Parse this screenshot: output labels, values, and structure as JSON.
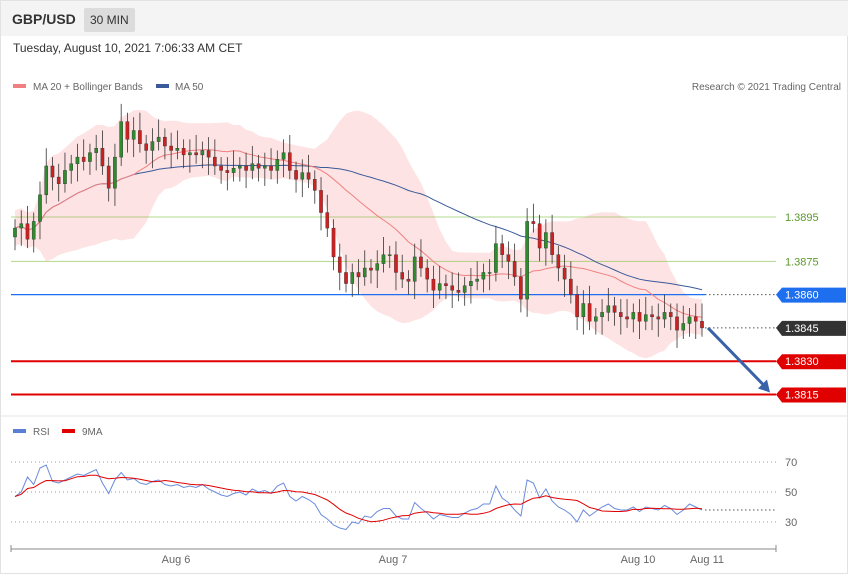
{
  "header": {
    "symbol": "GBP/USD",
    "timeframe": "30 MIN",
    "datetime": "Tuesday, August 10, 2021 7:06:33 AM CET"
  },
  "legend": {
    "ma20": "MA 20 + Bollinger Bands",
    "ma50": "MA 50",
    "copyright": "Research © 2021 Trading Central",
    "rsi": "RSI",
    "rsi_ma": "9MA"
  },
  "colors": {
    "ma20": "#f08080",
    "ma50": "#3a5a9a",
    "bands": "#fde0e0",
    "resistance": "#7fbf3f",
    "pivot": "#1e6ff0",
    "support": "#e00000",
    "current": "#333333",
    "up_candle": "#2e8b2e",
    "down_candle": "#cc2222",
    "arrow": "#3a62a8"
  },
  "chart_data": [
    {
      "type": "candlestick",
      "x_ticks": [
        "Aug 6",
        "Aug 7",
        "Aug 10",
        "Aug 11"
      ],
      "ylim": [
        1.3808,
        1.395
      ],
      "levels": [
        {
          "value": 1.3895,
          "label": "1.3895",
          "kind": "resistance"
        },
        {
          "value": 1.3875,
          "label": "1.3875",
          "kind": "resistance"
        },
        {
          "value": 1.386,
          "label": "1.3860",
          "kind": "pivot"
        },
        {
          "value": 1.3845,
          "label": "1.3845",
          "kind": "current"
        },
        {
          "value": 1.383,
          "label": "1.3830",
          "kind": "support"
        },
        {
          "value": 1.3815,
          "label": "1.3815",
          "kind": "support"
        }
      ],
      "closes": [
        1.389,
        1.3892,
        1.3885,
        1.3893,
        1.3905,
        1.3918,
        1.3913,
        1.391,
        1.3916,
        1.3919,
        1.3922,
        1.392,
        1.3924,
        1.3926,
        1.3918,
        1.3908,
        1.3922,
        1.3938,
        1.393,
        1.3934,
        1.3928,
        1.3925,
        1.3929,
        1.3931,
        1.3927,
        1.3925,
        1.3926,
        1.3923,
        1.3924,
        1.3923,
        1.3925,
        1.3922,
        1.3918,
        1.3916,
        1.3915,
        1.3917,
        1.3918,
        1.3916,
        1.3919,
        1.3917,
        1.3918,
        1.3916,
        1.3921,
        1.3924,
        1.3916,
        1.3912,
        1.3915,
        1.3912,
        1.3907,
        1.3897,
        1.389,
        1.3877,
        1.387,
        1.3865,
        1.387,
        1.3868,
        1.3872,
        1.3871,
        1.3874,
        1.3878,
        1.3878,
        1.387,
        1.3867,
        1.3866,
        1.3877,
        1.3872,
        1.3867,
        1.3862,
        1.3865,
        1.3864,
        1.3862,
        1.3861,
        1.3864,
        1.3866,
        1.3867,
        1.387,
        1.387,
        1.3883,
        1.3878,
        1.3875,
        1.3868,
        1.3858,
        1.3893,
        1.3892,
        1.3881,
        1.3888,
        1.3878,
        1.3872,
        1.3867,
        1.386,
        1.385,
        1.3856,
        1.3848,
        1.385,
        1.3852,
        1.3855,
        1.3852,
        1.385,
        1.3849,
        1.3852,
        1.3848,
        1.3851,
        1.385,
        1.3849,
        1.3852,
        1.385,
        1.3844,
        1.3847,
        1.385,
        1.3848,
        1.3845
      ]
    },
    {
      "type": "line",
      "name": "RSI",
      "y_ticks": [
        70,
        50,
        30
      ],
      "ylim": [
        18,
        78
      ],
      "rsi": [
        47,
        50,
        60,
        55,
        66,
        68,
        57,
        56,
        58,
        60,
        62,
        61,
        63,
        65,
        56,
        49,
        58,
        63,
        58,
        59,
        56,
        55,
        57,
        58,
        55,
        54,
        55,
        53,
        54,
        53,
        55,
        52,
        50,
        48,
        47,
        49,
        50,
        48,
        52,
        50,
        51,
        49,
        54,
        56,
        47,
        44,
        47,
        45,
        42,
        35,
        32,
        28,
        26,
        25,
        30,
        29,
        34,
        33,
        37,
        39,
        39,
        34,
        32,
        32,
        43,
        39,
        36,
        32,
        35,
        34,
        33,
        33,
        36,
        38,
        39,
        42,
        42,
        54,
        46,
        43,
        38,
        34,
        58,
        56,
        46,
        52,
        44,
        40,
        38,
        35,
        30,
        38,
        34,
        37,
        40,
        42,
        39,
        38,
        38,
        40,
        37,
        40,
        39,
        38,
        41,
        39,
        35,
        38,
        42,
        40,
        38
      ]
    }
  ]
}
